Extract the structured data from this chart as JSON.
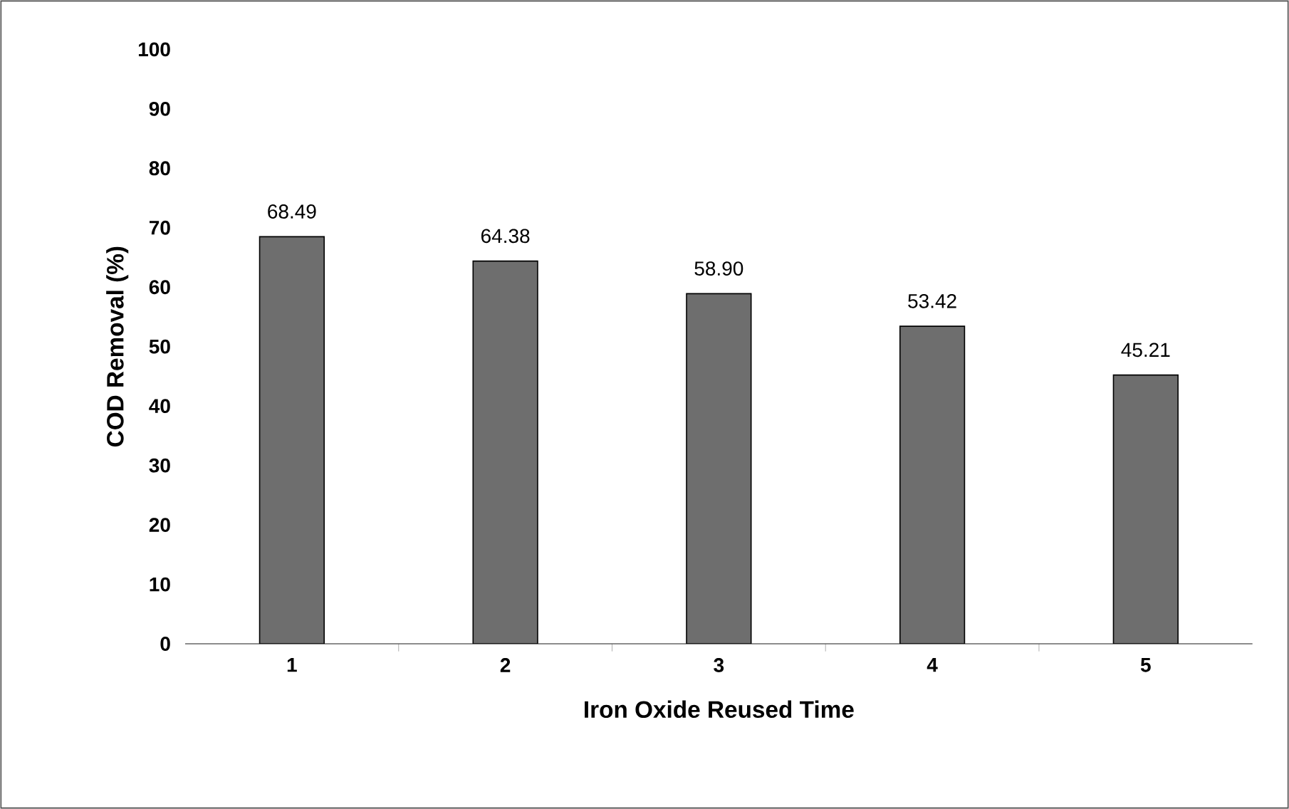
{
  "chart_data": {
    "type": "bar",
    "xlabel": "Iron Oxide Reused Time",
    "ylabel": "COD Removal (%)",
    "categories": [
      "1",
      "2",
      "3",
      "4",
      "5"
    ],
    "values": [
      68.49,
      64.38,
      58.9,
      53.42,
      45.21
    ],
    "value_labels": [
      "68.49",
      "64.38",
      "58.90",
      "53.42",
      "45.21"
    ],
    "color": "#6e6e6e",
    "ylim": [
      0,
      100
    ],
    "yticks": [
      0,
      10,
      20,
      30,
      40,
      50,
      60,
      70,
      80,
      90,
      100
    ],
    "grid": false,
    "legend": false
  }
}
